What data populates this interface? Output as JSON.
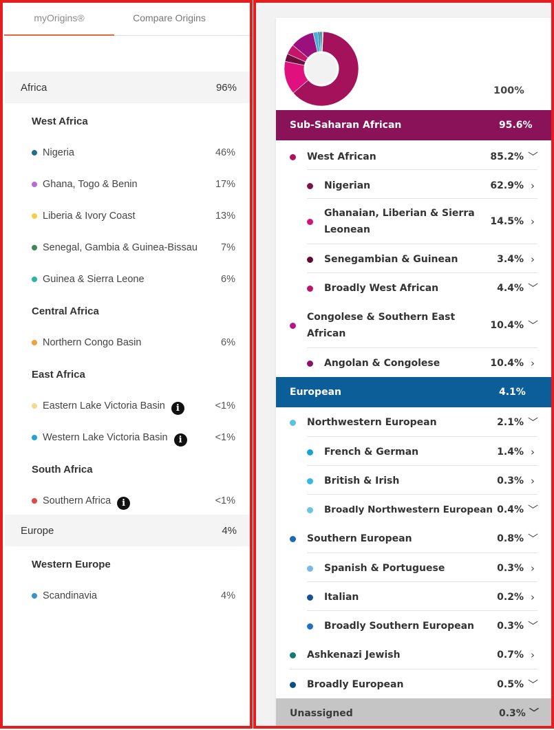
{
  "left": {
    "tabs": [
      {
        "label": "myOrigins®"
      },
      {
        "label": "Compare Origins"
      }
    ],
    "regions": [
      {
        "name": "Africa",
        "percent": "96%",
        "subregions": [
          {
            "name": "West Africa",
            "populations": [
              {
                "name": "Nigeria",
                "percent": "46%",
                "color": "#1d6f8a"
              },
              {
                "name": "Ghana, Togo & Benin",
                "percent": "17%",
                "color": "#b86ad6"
              },
              {
                "name": "Liberia & Ivory Coast",
                "percent": "13%",
                "color": "#f2cf4a"
              },
              {
                "name": "Senegal, Gambia & Guinea-Bissau",
                "percent": "7%",
                "color": "#3b8a55"
              },
              {
                "name": "Guinea & Sierra Leone",
                "percent": "6%",
                "color": "#2bb5a7"
              }
            ]
          },
          {
            "name": "Central Africa",
            "populations": [
              {
                "name": "Northern Congo Basin",
                "percent": "6%",
                "color": "#f0a03c"
              }
            ]
          },
          {
            "name": "East Africa",
            "populations": [
              {
                "name": "Eastern Lake Victoria Basin",
                "percent": "<1%",
                "color": "#f6d98a"
              },
              {
                "name": "Western Lake Victoria Basin",
                "percent": "<1%",
                "color": "#23a3d6"
              }
            ]
          },
          {
            "name": "South Africa",
            "populations": [
              {
                "name": "Southern Africa",
                "percent": "<1%",
                "color": "#e04848"
              }
            ]
          }
        ]
      },
      {
        "name": "Europe",
        "percent": "4%",
        "subregions": [
          {
            "name": "Western Europe",
            "populations": [
              {
                "name": "Scandinavia",
                "percent": "4%",
                "color": "#3a93c4"
              }
            ]
          }
        ]
      }
    ]
  },
  "right": {
    "total": "100%",
    "categories": [
      {
        "name": "Sub-Saharan African",
        "percent": "95.6%",
        "color": "#8a1259"
      },
      {
        "name": "European",
        "percent": "4.1%",
        "color": "#0b5e98"
      },
      {
        "name": "Unassigned",
        "percent": "0.3%",
        "color": "#c5c5c5"
      }
    ],
    "rows": [
      {
        "name": "West African",
        "percent": "85.2%",
        "color": "#b0125d",
        "chevron": "down"
      },
      {
        "name": "Nigerian",
        "percent": "62.9%",
        "color": "#7e1246",
        "chevron": "right"
      },
      {
        "name": "Ghanaian, Liberian & Sierra Leonean",
        "percent": "14.5%",
        "color": "#d4127c",
        "chevron": "right"
      },
      {
        "name": "Senegambian & Guinean",
        "percent": "3.4%",
        "color": "#620c35",
        "chevron": "right"
      },
      {
        "name": "Broadly West African",
        "percent": "4.4%",
        "color": "#c0126a",
        "chevron": "down"
      },
      {
        "name": "Congolese & Southern East African",
        "percent": "10.4%",
        "color": "#b81488",
        "chevron": "down"
      },
      {
        "name": "Angolan & Congolese",
        "percent": "10.4%",
        "color": "#8e1068",
        "chevron": "right"
      },
      {
        "name": "Northwestern European",
        "percent": "2.1%",
        "color": "#5bc0e6",
        "chevron": "down"
      },
      {
        "name": "French & German",
        "percent": "1.4%",
        "color": "#15a3d9",
        "chevron": "right"
      },
      {
        "name": "British & Irish",
        "percent": "0.3%",
        "color": "#36b9ea",
        "chevron": "right"
      },
      {
        "name": "Broadly Northwestern European",
        "percent": "0.4%",
        "color": "#6ac4e2",
        "chevron": "down"
      },
      {
        "name": "Southern European",
        "percent": "0.8%",
        "color": "#1d67b8",
        "chevron": "down"
      },
      {
        "name": "Spanish & Portuguese",
        "percent": "0.3%",
        "color": "#7ab7ea",
        "chevron": "right"
      },
      {
        "name": "Italian",
        "percent": "0.2%",
        "color": "#154f9a",
        "chevron": "right"
      },
      {
        "name": "Broadly Southern European",
        "percent": "0.3%",
        "color": "#1f6fc4",
        "chevron": "down"
      },
      {
        "name": "Ashkenazi Jewish",
        "percent": "0.7%",
        "color": "#127a6f",
        "chevron": "right"
      },
      {
        "name": "Broadly European",
        "percent": "0.5%",
        "color": "#0a4f8a",
        "chevron": "down"
      }
    ],
    "donut": [
      {
        "value": 62.9,
        "color": "#a3125a"
      },
      {
        "value": 14.5,
        "color": "#e0117f"
      },
      {
        "value": 3.4,
        "color": "#6e0d3c"
      },
      {
        "value": 4.4,
        "color": "#c41569"
      },
      {
        "value": 10.4,
        "color": "#9b107c"
      },
      {
        "value": 2.1,
        "color": "#4bb0dc"
      },
      {
        "value": 0.8,
        "color": "#1d67b8"
      },
      {
        "value": 0.7,
        "color": "#127a6f"
      },
      {
        "value": 0.5,
        "color": "#0a4f8a"
      },
      {
        "value": 0.3,
        "color": "#c5c5c5"
      }
    ]
  },
  "icons": {
    "info": "info-icon",
    "chevron_down": "chevron-down-icon",
    "chevron_right": "chevron-right-icon"
  }
}
